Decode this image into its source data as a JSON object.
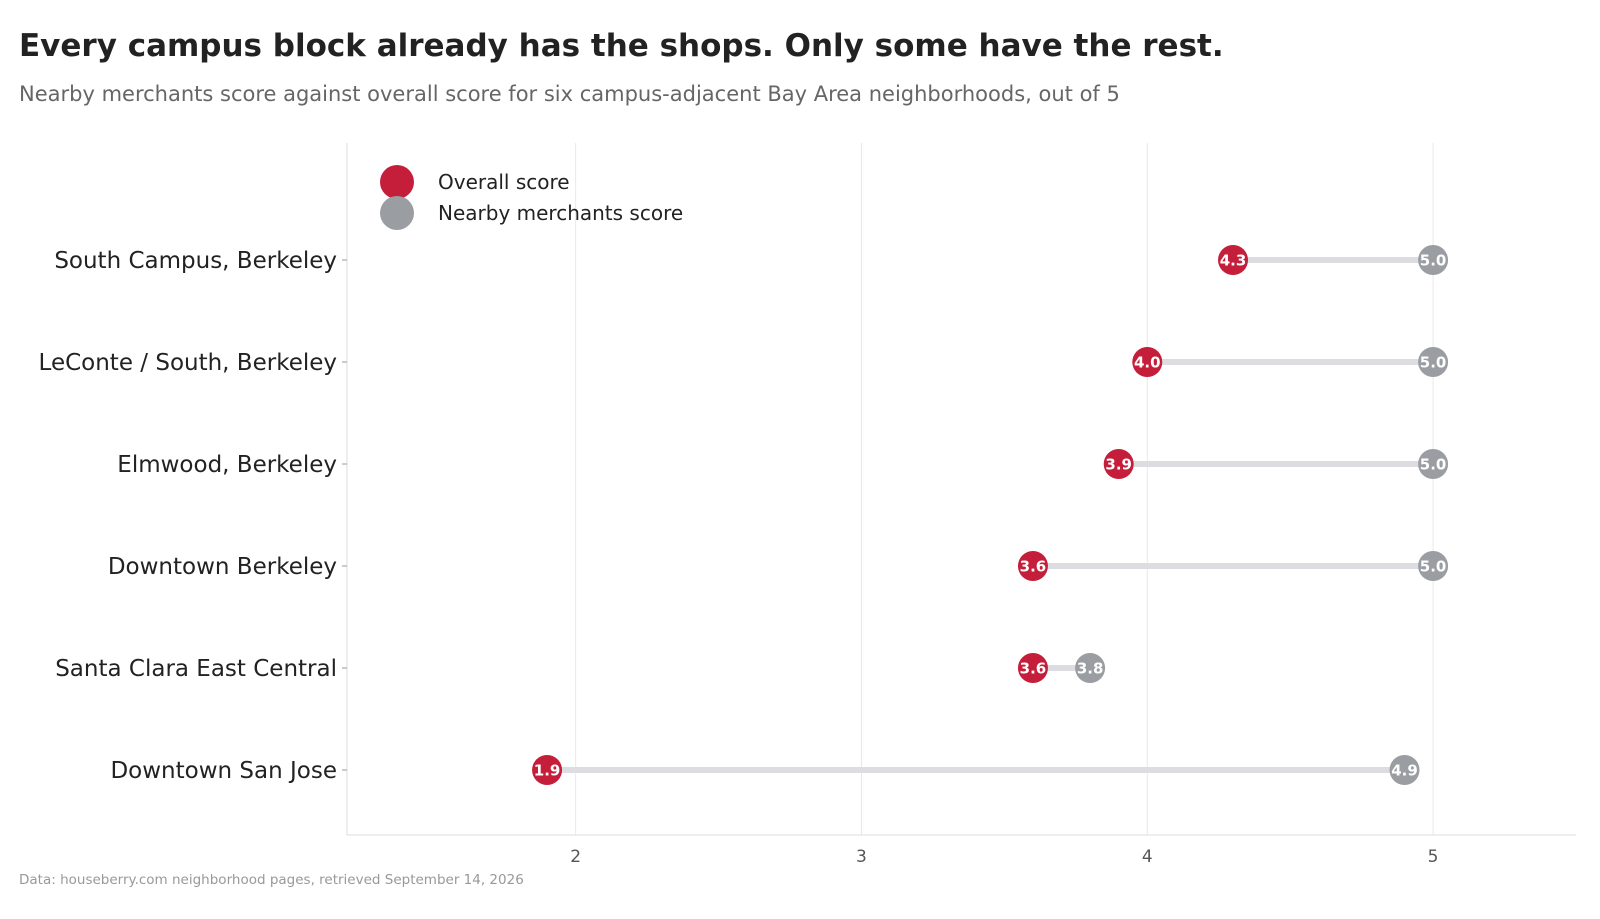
{
  "title": "Every campus block already has the shops. Only some have the rest.",
  "subtitle": "Nearby merchants score against overall score for six campus-adjacent Bay Area neighborhoods, out of 5",
  "source": "Data: houseberry.com neighborhood pages, retrieved September 14, 2026",
  "colors": {
    "overall": "#c41e3a",
    "merchants": "#9a9da2",
    "connector": "#dddde1",
    "grid": "#e8e8e8",
    "axis": "#dddddd"
  },
  "chart_data": {
    "type": "dumbbell",
    "categories": [
      "South Campus, Berkeley",
      "LeConte / South, Berkeley",
      "Elmwood, Berkeley",
      "Downtown Berkeley",
      "Santa Clara East Central",
      "Downtown San Jose"
    ],
    "series": [
      {
        "name": "Overall score",
        "values": [
          4.3,
          4.0,
          3.9,
          3.6,
          3.6,
          1.9
        ]
      },
      {
        "name": "Nearby merchants score",
        "values": [
          5.0,
          5.0,
          5.0,
          5.0,
          3.8,
          4.9
        ]
      }
    ],
    "value_labels": {
      "overall": [
        "4.3",
        "4.0",
        "3.9",
        "3.6",
        "3.6",
        "1.9"
      ],
      "merchants": [
        "5.0",
        "5.0",
        "5.0",
        "5.0",
        "3.8",
        "4.9"
      ]
    },
    "xticks": [
      "2",
      "3",
      "4",
      "5"
    ],
    "xtick_values": [
      2,
      3,
      4,
      5
    ],
    "xlim": [
      1.2,
      5.5
    ],
    "grid": true,
    "legend_position": "top-left"
  }
}
